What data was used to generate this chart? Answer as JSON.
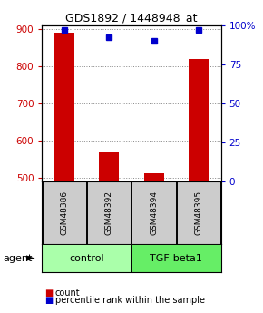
{
  "title": "GDS1892 / 1448948_at",
  "samples": [
    "GSM48386",
    "GSM48392",
    "GSM48394",
    "GSM48395"
  ],
  "bar_values": [
    890,
    570,
    513,
    820
  ],
  "percentile_values": [
    97,
    92,
    90,
    97
  ],
  "ylim_left": [
    490,
    910
  ],
  "ylim_right": [
    0,
    100
  ],
  "yticks_left": [
    500,
    600,
    700,
    800,
    900
  ],
  "yticks_right": [
    0,
    25,
    50,
    75,
    100
  ],
  "yticklabels_right": [
    "0",
    "25",
    "50",
    "75",
    "100%"
  ],
  "bar_color": "#cc0000",
  "dot_color": "#0000cc",
  "bar_width": 0.45,
  "groups": [
    {
      "label": "control",
      "color": "#aaffaa",
      "indices": [
        0,
        1
      ]
    },
    {
      "label": "TGF-beta1",
      "color": "#66ee66",
      "indices": [
        2,
        3
      ]
    }
  ],
  "agent_label": "agent",
  "legend_count_label": "count",
  "legend_percentile_label": "percentile rank within the sample",
  "grid_color": "#888888",
  "sample_box_color": "#cccccc",
  "left_tick_color": "#cc0000",
  "right_tick_color": "#0000cc",
  "title_fontsize": 9,
  "tick_fontsize": 7.5,
  "sample_fontsize": 6.5
}
